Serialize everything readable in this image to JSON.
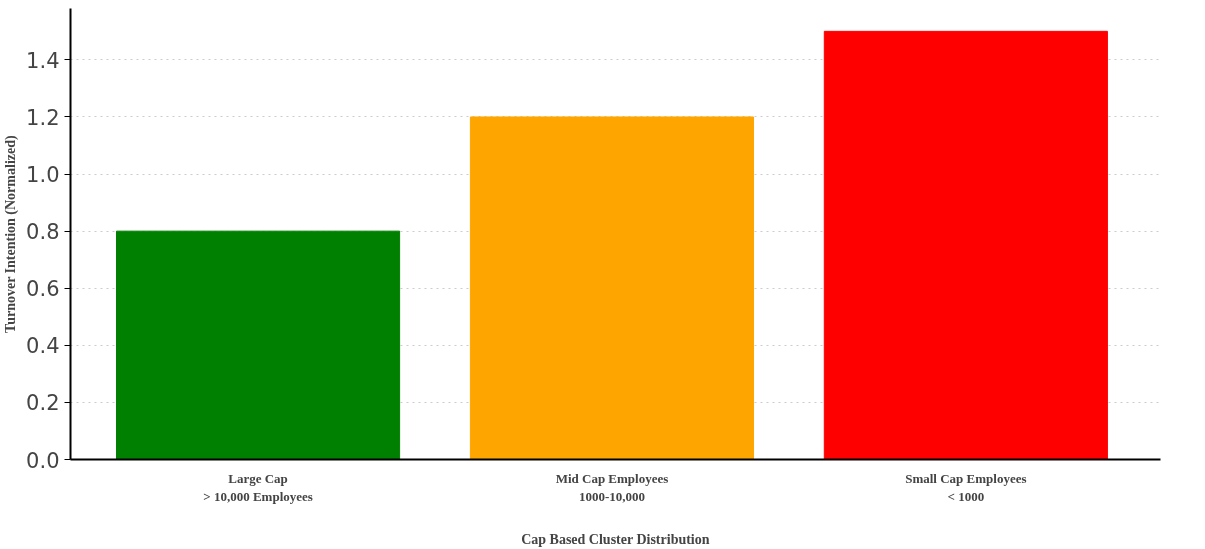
{
  "chart_data": {
    "type": "bar",
    "xlabel": "Cap Based Cluster Distribution",
    "ylabel": "Turnover Intention (Normalized)",
    "categories": [
      "Large Cap\n> 10,000 Employees",
      "Mid Cap Employees\n1000-10,000",
      "Small Cap Employees\n< 1000"
    ],
    "values": [
      0.8,
      1.2,
      1.5
    ],
    "colors": [
      "#008000",
      "#ffa500",
      "#ff0000"
    ],
    "ylim": [
      0,
      1.58
    ],
    "yticks": [
      {
        "value": 0,
        "label": "0.0"
      },
      {
        "value": 0.2,
        "label": "0.2"
      },
      {
        "value": 0.4,
        "label": "0.4"
      },
      {
        "value": 0.6,
        "label": "0.6"
      },
      {
        "value": 0.8,
        "label": "0.8"
      },
      {
        "value": 1.0,
        "label": "1.0"
      },
      {
        "value": 1.2,
        "label": "1.2"
      },
      {
        "value": 1.4,
        "label": "1.4"
      }
    ],
    "grid": "y"
  }
}
